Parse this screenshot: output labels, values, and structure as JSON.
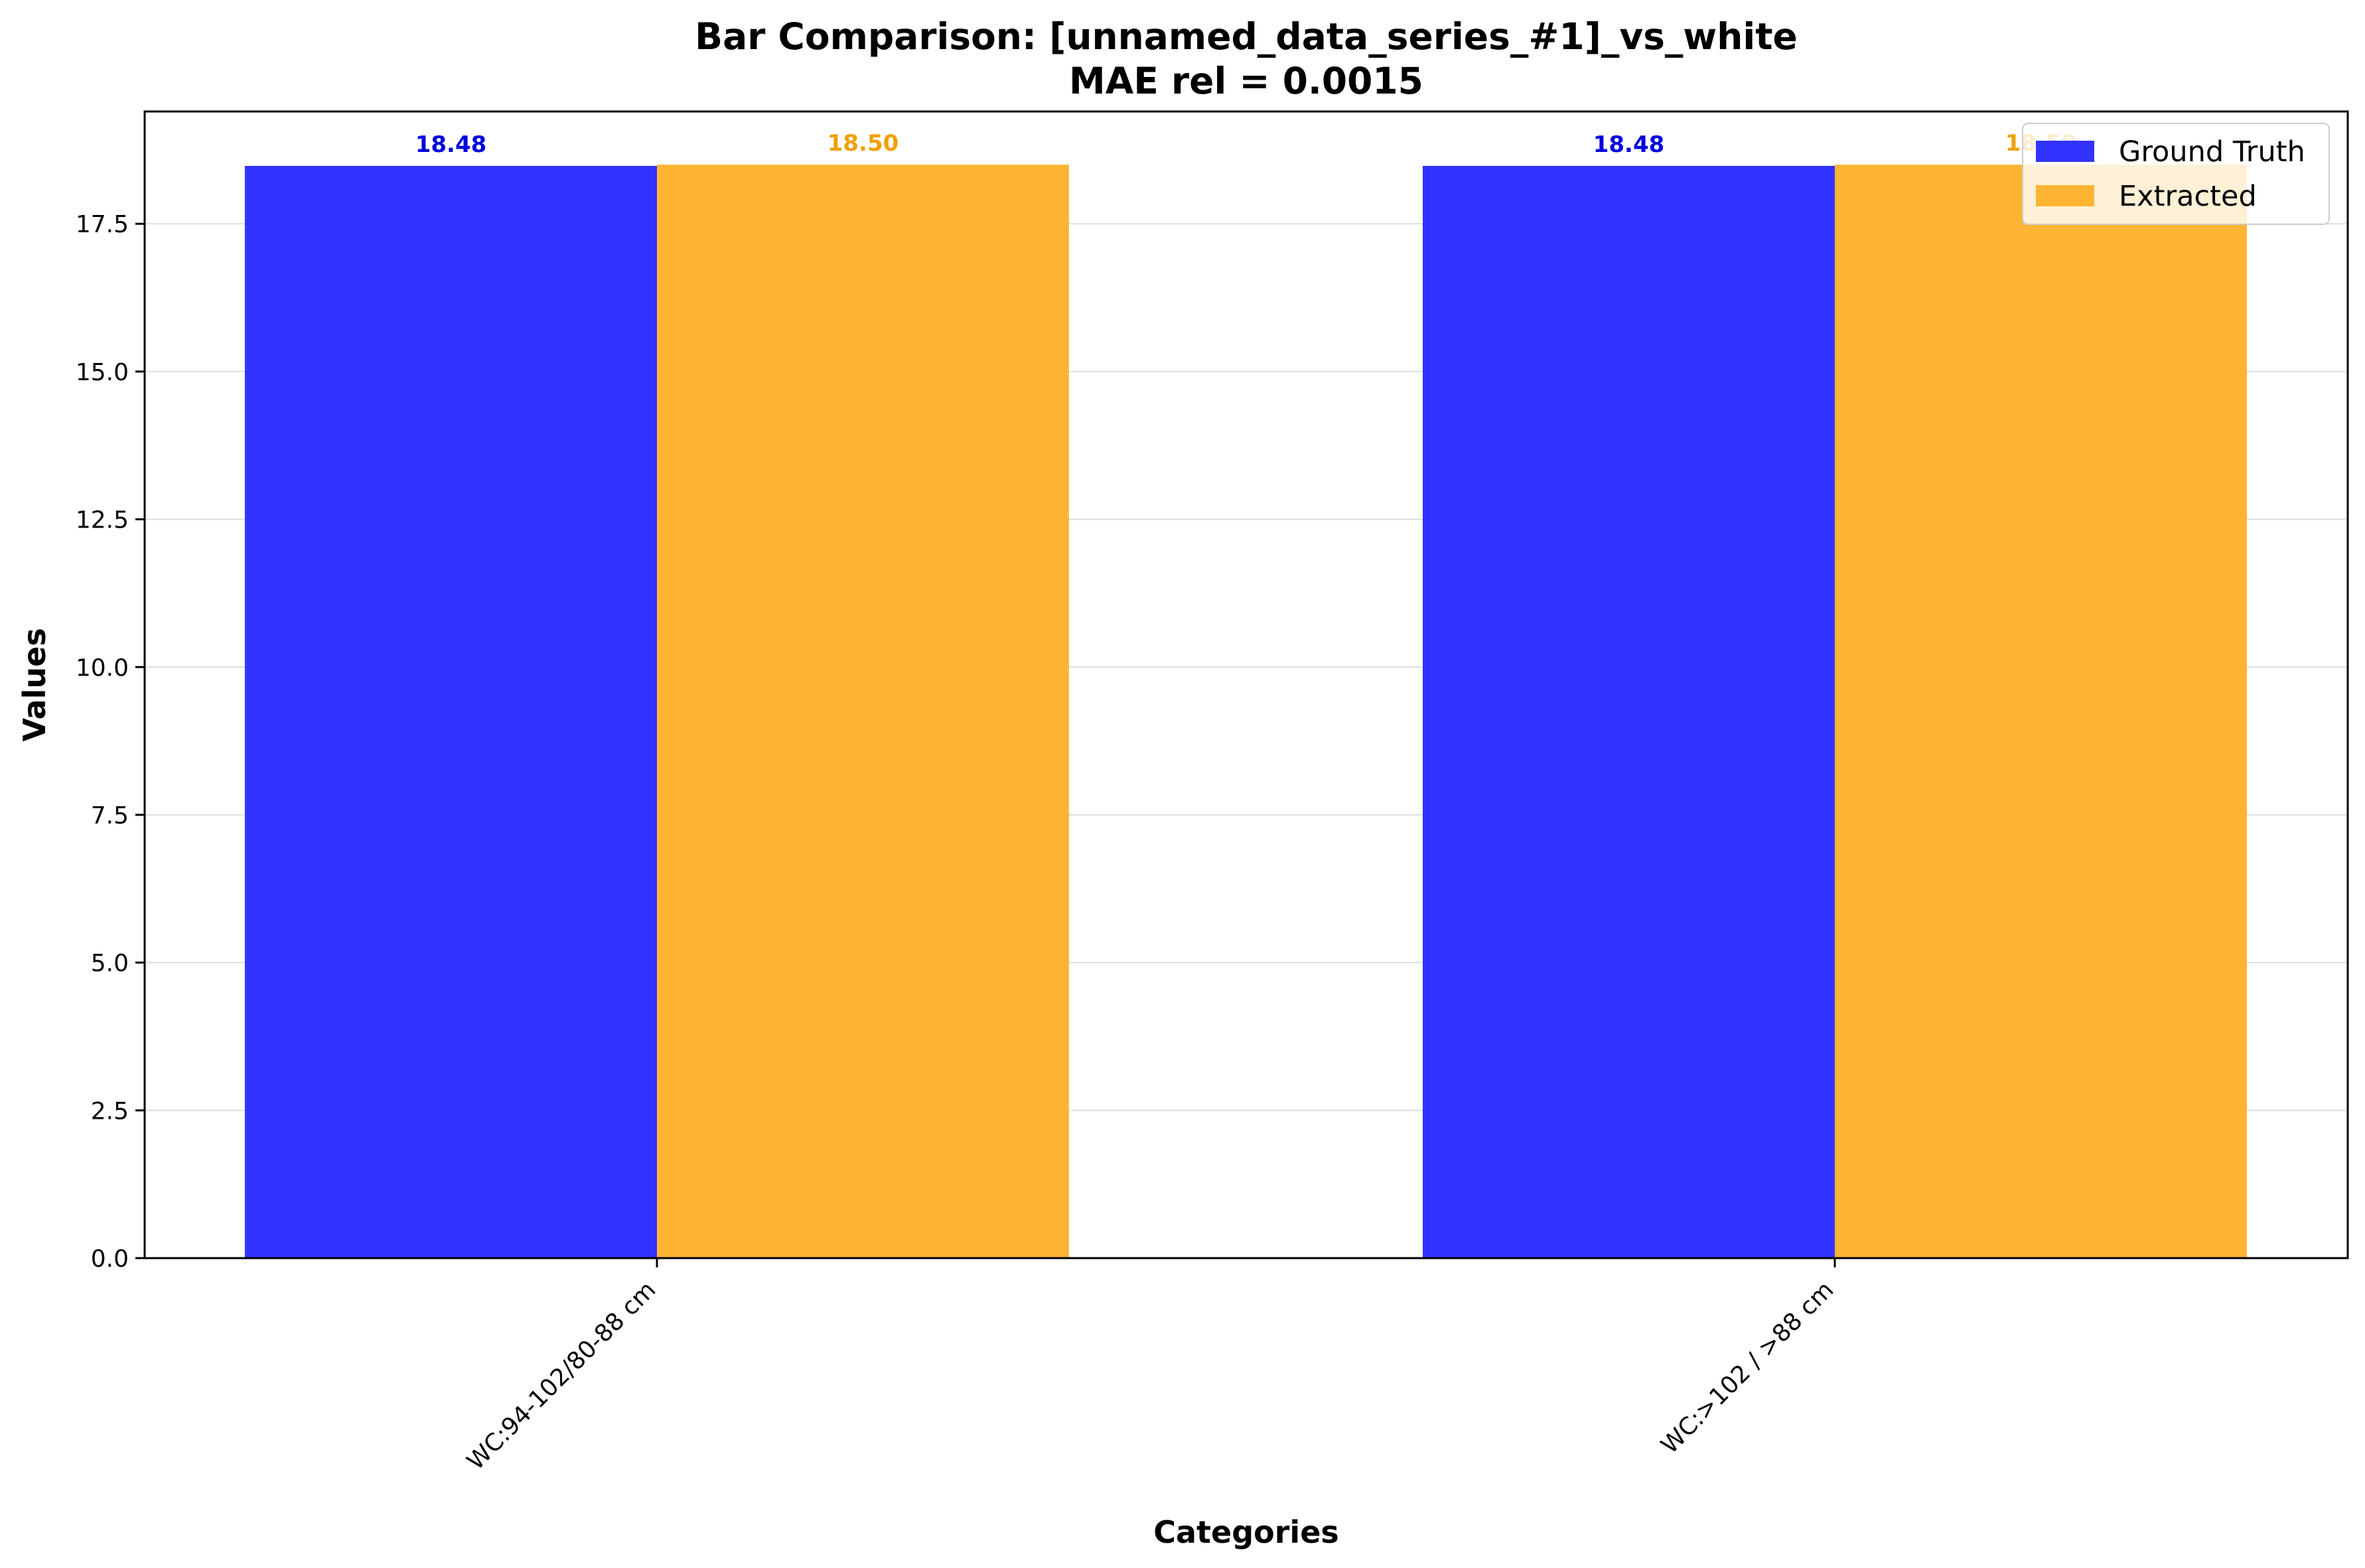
{
  "chart_data": {
    "type": "bar",
    "title_line1": "Bar Comparison: [unnamed_data_series_#1]_vs_white",
    "title_line2": "MAE rel = 0.0015",
    "xlabel": "Categories",
    "ylabel": "Values",
    "categories": [
      "WC:94-102/80-88 cm",
      "WC:>102 / >88 cm"
    ],
    "series": [
      {
        "name": "Ground Truth",
        "color": "#3333ff",
        "label_color": "#0000dd",
        "values": [
          18.48,
          18.48
        ],
        "value_labels": [
          "18.48",
          "18.48"
        ]
      },
      {
        "name": "Extracted",
        "color": "#ffb533",
        "label_color": "#f0a000",
        "values": [
          18.5,
          18.5
        ],
        "value_labels": [
          "18.50",
          "18.50"
        ]
      }
    ],
    "ylim": [
      0,
      19.4
    ],
    "yticks": [
      0.0,
      2.5,
      5.0,
      7.5,
      10.0,
      12.5,
      15.0,
      17.5
    ],
    "ytick_labels": [
      "0.0",
      "2.5",
      "5.0",
      "7.5",
      "10.0",
      "12.5",
      "15.0",
      "17.5"
    ],
    "grid": true,
    "legend_position": "top-right"
  }
}
